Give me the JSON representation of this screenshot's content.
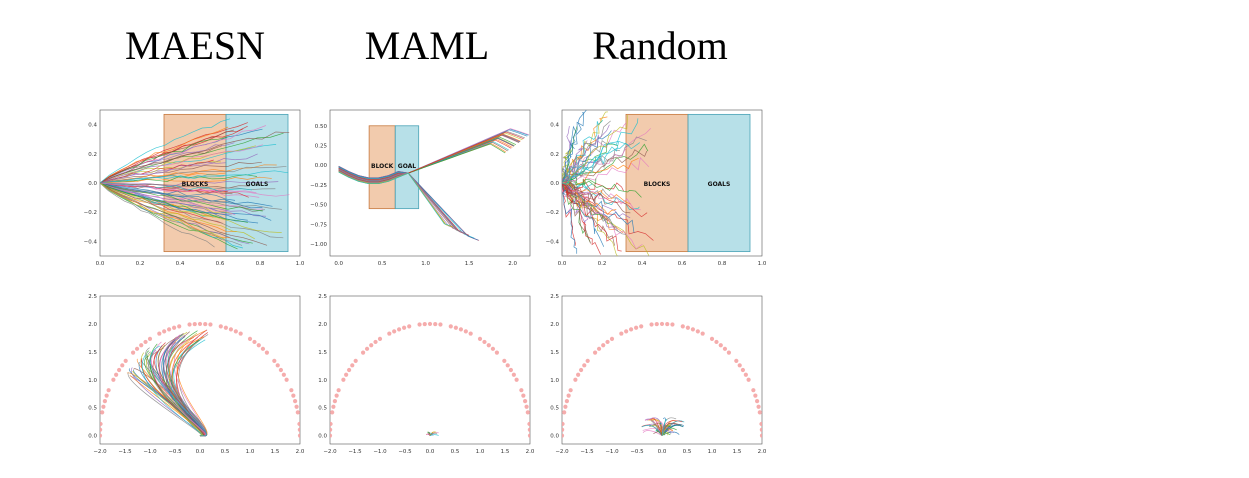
{
  "column_titles": [
    "MAESN",
    "MAML",
    "Random"
  ],
  "colors": {
    "block_fill": "#e8a06a",
    "goal_fill": "#7cc6d6",
    "goal_dots": "#f4a3a3",
    "trajectory_palette": [
      "#1f77b4",
      "#ff7f0e",
      "#2ca02c",
      "#d62728",
      "#9467bd",
      "#8c564b",
      "#e377c2",
      "#7f7f7f",
      "#bcbd22",
      "#17becf"
    ]
  },
  "chart_data": [
    {
      "id": "maesn-block",
      "type": "line",
      "method": "MAESN",
      "xlim": [
        0.0,
        1.0
      ],
      "ylim": [
        -0.5,
        0.5
      ],
      "xticks": [
        "0.0",
        "0.2",
        "0.4",
        "0.6",
        "0.8",
        "1.0"
      ],
      "yticks": [
        "0.4",
        "0.2",
        "0.0",
        "−0.2",
        "−0.4"
      ],
      "regions": [
        {
          "label": "BLOCKS",
          "x": [
            0.32,
            0.63
          ],
          "y": [
            -0.47,
            0.47
          ],
          "kind": "block"
        },
        {
          "label": "GOALS",
          "x": [
            0.63,
            0.94
          ],
          "y": [
            -0.47,
            0.47
          ],
          "kind": "goal"
        }
      ],
      "trajectories": {
        "count": 70,
        "start": [
          0.0,
          0.0
        ],
        "x_end_range": [
          0.55,
          0.95
        ],
        "y_spread": 0.45
      }
    },
    {
      "id": "maml-block",
      "type": "line",
      "method": "MAML",
      "xlim": [
        -0.1,
        2.2
      ],
      "ylim": [
        -1.15,
        0.7
      ],
      "xticks": [
        "0.0",
        "0.5",
        "1.0",
        "1.5",
        "2.0"
      ],
      "yticks": [
        "0.50",
        "0.25",
        "0.00",
        "−0.25",
        "−0.50",
        "−0.75",
        "−1.00"
      ],
      "regions": [
        {
          "label": "BLOCK",
          "x": [
            0.35,
            0.65
          ],
          "y": [
            -0.55,
            0.5
          ],
          "kind": "block"
        },
        {
          "label": "GOAL",
          "x": [
            0.65,
            0.92
          ],
          "y": [
            -0.55,
            0.5
          ],
          "kind": "goal"
        }
      ],
      "trajectories": {
        "count": 40,
        "start": [
          0.0,
          0.0
        ],
        "upper_end": [
          2.0,
          0.35
        ],
        "lower_end": [
          1.4,
          -0.85
        ]
      }
    },
    {
      "id": "random-block",
      "type": "line",
      "method": "Random",
      "xlim": [
        0.0,
        1.0
      ],
      "ylim": [
        -0.5,
        0.5
      ],
      "xticks": [
        "0.0",
        "0.2",
        "0.4",
        "0.6",
        "0.8",
        "1.0"
      ],
      "yticks": [
        "0.4",
        "0.2",
        "0.0",
        "−0.2",
        "−0.4"
      ],
      "regions": [
        {
          "label": "BLOCKS",
          "x": [
            0.32,
            0.63
          ],
          "y": [
            -0.47,
            0.47
          ],
          "kind": "block"
        },
        {
          "label": "GOALS",
          "x": [
            0.63,
            0.94
          ],
          "y": [
            -0.47,
            0.47
          ],
          "kind": "goal"
        }
      ],
      "trajectories": {
        "count": 70,
        "start": [
          0.0,
          0.0
        ],
        "x_end_range": [
          0.02,
          0.45
        ],
        "y_spread": 0.5
      }
    },
    {
      "id": "maesn-wheeled",
      "type": "line",
      "method": "MAESN",
      "xlim": [
        -2.0,
        2.0
      ],
      "ylim": [
        -0.15,
        2.5
      ],
      "xticks": [
        "−2.0",
        "−1.5",
        "−1.0",
        "−0.5",
        "0.0",
        "0.5",
        "1.0",
        "1.5",
        "2.0"
      ],
      "yticks": [
        "2.5",
        "2.0",
        "1.5",
        "1.0",
        "0.5",
        "0.0"
      ],
      "goal_arc": {
        "radius": 2.0,
        "center": [
          0,
          0
        ],
        "points": 60
      },
      "trajectories": {
        "count": 60,
        "start": [
          0.0,
          0.0
        ],
        "pattern": "loops-to-arc"
      }
    },
    {
      "id": "maml-wheeled",
      "type": "line",
      "method": "MAML",
      "xlim": [
        -2.0,
        2.0
      ],
      "ylim": [
        -0.15,
        2.5
      ],
      "xticks": [
        "−2.0",
        "−1.5",
        "−1.0",
        "−0.5",
        "0.0",
        "0.5",
        "1.0",
        "1.5",
        "2.0"
      ],
      "yticks": [
        "2.5",
        "2.0",
        "1.5",
        "1.0",
        "0.5",
        "0.0"
      ],
      "goal_arc": {
        "radius": 2.0,
        "center": [
          0,
          0
        ],
        "points": 60
      },
      "trajectories": {
        "count": 20,
        "start": [
          0.0,
          0.0
        ],
        "pattern": "tiny-cluster"
      }
    },
    {
      "id": "random-wheeled",
      "type": "line",
      "method": "Random",
      "xlim": [
        -2.0,
        2.0
      ],
      "ylim": [
        -0.15,
        2.5
      ],
      "xticks": [
        "−2.0",
        "−1.5",
        "−1.0",
        "−0.5",
        "0.0",
        "0.5",
        "1.0",
        "1.5",
        "2.0"
      ],
      "yticks": [
        "2.5",
        "2.0",
        "1.5",
        "1.0",
        "0.5",
        "0.0"
      ],
      "goal_arc": {
        "radius": 2.0,
        "center": [
          0,
          0
        ],
        "points": 60
      },
      "trajectories": {
        "count": 60,
        "start": [
          0.0,
          0.0
        ],
        "pattern": "small-cluster"
      }
    }
  ]
}
